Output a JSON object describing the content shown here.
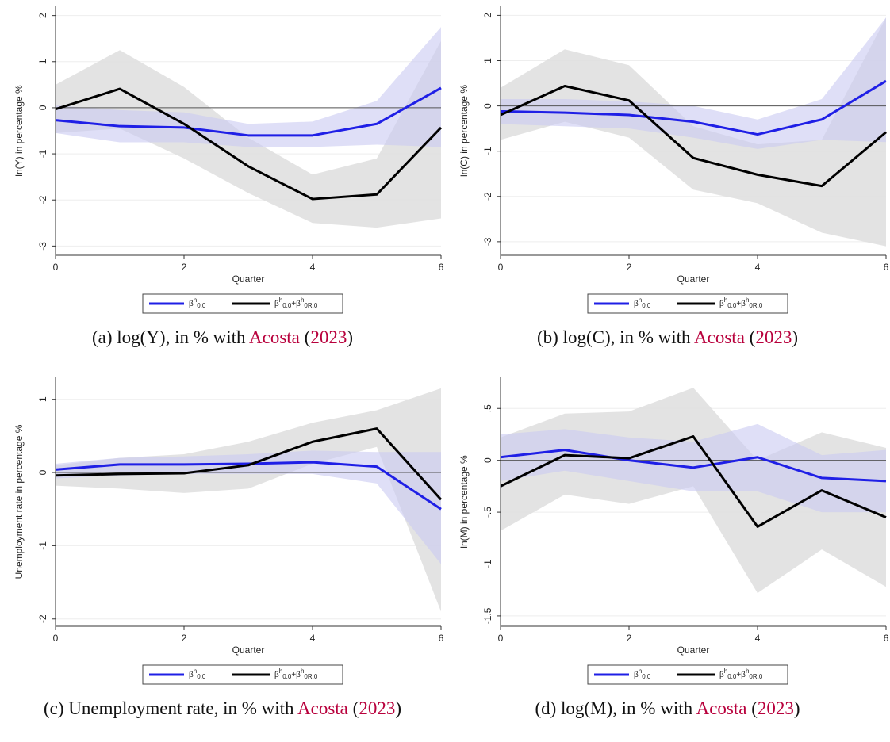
{
  "chart_data": [
    {
      "type": "line",
      "title": "",
      "xlabel": "Quarter",
      "ylabel": "ln(Y) in percentage %",
      "x": [
        0,
        1,
        2,
        3,
        4,
        5,
        6
      ],
      "xlim": [
        0,
        6
      ],
      "ylim": [
        -3.2,
        2.2
      ],
      "xticks": [
        0,
        2,
        4,
        6
      ],
      "yticks": [
        2,
        1,
        0,
        -1,
        -2,
        -3
      ],
      "ytick_labels": [
        "2",
        "1",
        "0",
        "-1",
        "-2",
        "-3"
      ],
      "grid": true,
      "legend_position": "bottom",
      "series": [
        {
          "name": "β^h_0,0",
          "color": "#1f1fe6",
          "values": [
            -0.27,
            -0.4,
            -0.43,
            -0.6,
            -0.6,
            -0.35,
            0.43
          ],
          "band_lower": [
            -0.55,
            -0.75,
            -0.75,
            -0.85,
            -0.85,
            -0.8,
            -0.85
          ],
          "band_upper": [
            0.05,
            -0.05,
            -0.1,
            -0.35,
            -0.3,
            0.15,
            1.75
          ],
          "band_color": "#c9c9f2"
        },
        {
          "name": "β^h_0,0+β^h_0R,0",
          "color": "#000000",
          "values": [
            -0.03,
            0.41,
            -0.35,
            -1.27,
            -1.98,
            -1.88,
            -0.43
          ],
          "band_lower": [
            -0.55,
            -0.45,
            -1.1,
            -1.85,
            -2.5,
            -2.6,
            -2.4
          ],
          "band_upper": [
            0.5,
            1.25,
            0.45,
            -0.65,
            -1.45,
            -1.1,
            1.45
          ],
          "band_color": "#dedede"
        }
      ]
    },
    {
      "type": "line",
      "title": "",
      "xlabel": "Quarter",
      "ylabel": "ln(C) in percentage %",
      "x": [
        0,
        1,
        2,
        3,
        4,
        5,
        6
      ],
      "xlim": [
        0,
        6
      ],
      "ylim": [
        -3.3,
        2.2
      ],
      "xticks": [
        0,
        2,
        4,
        6
      ],
      "yticks": [
        2,
        1,
        0,
        -1,
        -2,
        -3
      ],
      "ytick_labels": [
        "2",
        "1",
        "0",
        "-1",
        "-2",
        "-3"
      ],
      "grid": true,
      "legend_position": "bottom",
      "series": [
        {
          "name": "β^h_0,0",
          "color": "#1f1fe6",
          "values": [
            -0.12,
            -0.15,
            -0.2,
            -0.35,
            -0.63,
            -0.3,
            0.55
          ],
          "band_lower": [
            -0.4,
            -0.45,
            -0.5,
            -0.7,
            -0.95,
            -0.75,
            -0.8
          ],
          "band_upper": [
            0.15,
            0.15,
            0.1,
            0.0,
            -0.3,
            0.15,
            1.95
          ],
          "band_color": "#c9c9f2"
        },
        {
          "name": "β^h_0,0+β^h_0R,0",
          "color": "#000000",
          "values": [
            -0.2,
            0.44,
            0.12,
            -1.15,
            -1.52,
            -1.77,
            -0.58
          ],
          "band_lower": [
            -0.75,
            -0.35,
            -0.7,
            -1.85,
            -2.15,
            -2.8,
            -3.1
          ],
          "band_upper": [
            0.4,
            1.25,
            0.9,
            -0.45,
            -0.85,
            -0.75,
            1.95
          ],
          "band_color": "#dedede"
        }
      ]
    },
    {
      "type": "line",
      "title": "",
      "xlabel": "Quarter",
      "ylabel": "Unemployment rate in percentage %",
      "x": [
        0,
        1,
        2,
        3,
        4,
        5,
        6
      ],
      "xlim": [
        0,
        6
      ],
      "ylim": [
        -2.1,
        1.3
      ],
      "xticks": [
        0,
        2,
        4,
        6
      ],
      "yticks": [
        1,
        0,
        -1,
        -2
      ],
      "ytick_labels": [
        "1",
        "0",
        "-1",
        "-2"
      ],
      "grid": true,
      "legend_position": "bottom",
      "series": [
        {
          "name": "β^h_0,0",
          "color": "#1f1fe6",
          "values": [
            0.04,
            0.11,
            0.11,
            0.12,
            0.14,
            0.08,
            -0.5
          ],
          "band_lower": [
            -0.08,
            -0.04,
            -0.02,
            -0.02,
            -0.02,
            -0.15,
            -1.25
          ],
          "band_upper": [
            0.12,
            0.2,
            0.22,
            0.25,
            0.3,
            0.28,
            0.28
          ],
          "band_color": "#c9c9f2"
        },
        {
          "name": "β^h_0,0+β^h_0R,0",
          "color": "#000000",
          "values": [
            -0.04,
            -0.02,
            -0.01,
            0.1,
            0.42,
            0.6,
            -0.37
          ],
          "band_lower": [
            -0.18,
            -0.22,
            -0.28,
            -0.22,
            0.12,
            0.35,
            -1.9
          ],
          "band_upper": [
            0.1,
            0.2,
            0.25,
            0.42,
            0.68,
            0.85,
            1.15
          ],
          "band_color": "#dedede"
        }
      ]
    },
    {
      "type": "line",
      "title": "",
      "xlabel": "Quarter",
      "ylabel": "ln(M) in percentage %",
      "x": [
        0,
        1,
        2,
        3,
        4,
        5,
        6
      ],
      "xlim": [
        0,
        6
      ],
      "ylim": [
        -1.6,
        0.8
      ],
      "xticks": [
        0,
        2,
        4,
        6
      ],
      "yticks": [
        0.5,
        0,
        -0.5,
        -1,
        -1.5
      ],
      "ytick_labels": [
        ".5",
        "0",
        "-.5",
        "-1",
        "-1.5"
      ],
      "grid": true,
      "legend_position": "bottom",
      "series": [
        {
          "name": "β^h_0,0",
          "color": "#1f1fe6",
          "values": [
            0.03,
            0.1,
            0.0,
            -0.07,
            0.03,
            -0.17,
            -0.2
          ],
          "band_lower": [
            -0.2,
            -0.1,
            -0.2,
            -0.3,
            -0.3,
            -0.5,
            -0.5
          ],
          "band_upper": [
            0.25,
            0.3,
            0.22,
            0.18,
            0.35,
            0.05,
            0.1
          ],
          "band_color": "#c9c9f2"
        },
        {
          "name": "β^h_0,0+β^h_0R,0",
          "color": "#000000",
          "values": [
            -0.25,
            0.05,
            0.02,
            0.23,
            -0.64,
            -0.29,
            -0.55
          ],
          "band_lower": [
            -0.68,
            -0.33,
            -0.42,
            -0.25,
            -1.28,
            -0.86,
            -1.22
          ],
          "band_upper": [
            0.22,
            0.45,
            0.47,
            0.7,
            0.0,
            0.27,
            0.12
          ],
          "band_color": "#dedede"
        }
      ]
    }
  ],
  "captions": [
    {
      "prefix": "(a) log(Y), in % with ",
      "author": "Acosta",
      "open": " (",
      "year": "2023",
      "close": ")"
    },
    {
      "prefix": "(b) log(C), in % with ",
      "author": "Acosta",
      "open": " (",
      "year": "2023",
      "close": ")"
    },
    {
      "prefix": "(c) Unemployment rate, in % with ",
      "author": "Acosta",
      "open": " (",
      "year": "2023",
      "close": ")"
    },
    {
      "prefix": "(d) log(M), in % with ",
      "author": "Acosta",
      "open": " (",
      "year": "2023",
      "close": ")"
    }
  ]
}
